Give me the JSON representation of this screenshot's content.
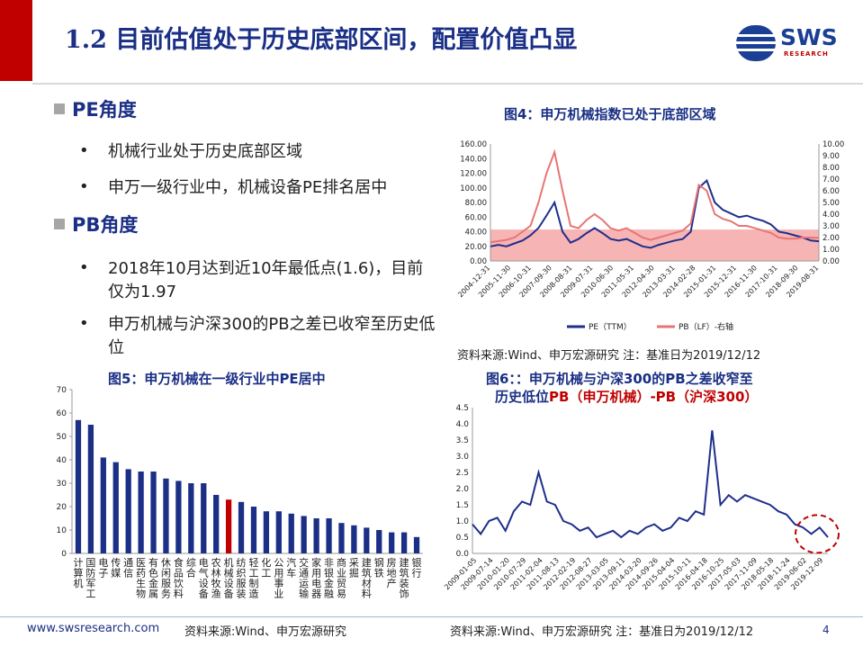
{
  "header": {
    "title": "1.2 目前估值处于历史底部区间，配置价值凸显",
    "logo_text": "SWS",
    "logo_sub": "RESEARCH"
  },
  "sections": [
    {
      "heading": "PE角度",
      "bullets": [
        "机械行业处于历史底部区域",
        "申万一级行业中，机械设备PE排名居中"
      ]
    },
    {
      "heading": "PB角度",
      "bullets": [
        "2018年10月达到近10年最低点(1.6)，目前仅为1.97",
        "申万机械与沪深300的PB之差已收窄至历史低位"
      ]
    }
  ],
  "fig4": {
    "title": "图4：申万机械指数已处于底部区域",
    "source": "资料来源:Wind、申万宏源研究 注：基准日为2019/12/12"
  },
  "fig5": {
    "title": "图5：申万机械在一级行业中PE居中"
  },
  "fig6": {
    "title_line1": "图6：：申万机械与沪深300的PB之差收窄至",
    "title_line2_a": "历史低位",
    "title_line2_b": "PB（申万机械）-PB（沪深300）"
  },
  "footer": {
    "url": "www.swsresearch.com",
    "source_left": "资料来源:Wind、申万宏源研究",
    "source_right": "资料来源:Wind、申万宏源研究 注：基准日为2019/12/12",
    "page": "4"
  },
  "colors": {
    "navy": "#1a2f85",
    "red": "#c00000",
    "pe_line": "#1f2f8c",
    "pb_line": "#e87575",
    "band": "#f7b4b4"
  },
  "chart_data": [
    {
      "id": "fig4",
      "type": "line",
      "x_ticks": [
        "2004-12-31",
        "2005-11-30",
        "2006-10-31",
        "2007-09-30",
        "2008-08-31",
        "2009-07-31",
        "2010-06-30",
        "2011-05-31",
        "2012-04-30",
        "2013-03-31",
        "2014-02-28",
        "2015-01-31",
        "2015-12-31",
        "2016-11-30",
        "2017-10-31",
        "2018-09-30",
        "2019-08-31"
      ],
      "y_ticks_left": [
        "0.00",
        "20.00",
        "40.00",
        "60.00",
        "80.00",
        "100.00",
        "120.00",
        "140.00",
        "160.00"
      ],
      "y_ticks_right": [
        "0.00",
        "1.00",
        "2.00",
        "3.00",
        "4.00",
        "5.00",
        "6.00",
        "7.00",
        "8.00",
        "9.00",
        "10.00"
      ],
      "ylim_left": [
        0,
        160
      ],
      "ylim_right": [
        0,
        10
      ],
      "shaded_band_left": [
        0,
        43
      ],
      "legend": [
        "PE（TTM）",
        "PB（LF）-右轴"
      ],
      "series": [
        {
          "name": "PE（TTM）",
          "axis": "left",
          "values": [
            20,
            22,
            20,
            24,
            28,
            35,
            45,
            62,
            80,
            40,
            25,
            30,
            38,
            45,
            38,
            30,
            28,
            30,
            25,
            20,
            18,
            22,
            25,
            28,
            30,
            40,
            100,
            110,
            80,
            70,
            65,
            60,
            62,
            58,
            55,
            50,
            40,
            38,
            35,
            32,
            28,
            27
          ]
        },
        {
          "name": "PB（LF）-右轴",
          "axis": "right",
          "values": [
            1.6,
            1.7,
            1.8,
            2.0,
            2.5,
            3.0,
            5.0,
            7.5,
            9.3,
            6.0,
            3.0,
            2.8,
            3.5,
            4.0,
            3.5,
            2.8,
            2.6,
            2.8,
            2.4,
            2.0,
            1.8,
            2.0,
            2.2,
            2.4,
            2.6,
            3.2,
            6.5,
            6.0,
            4.0,
            3.6,
            3.4,
            3.0,
            3.0,
            2.8,
            2.6,
            2.4,
            2.0,
            1.9,
            1.9,
            2.0,
            2.0,
            1.97
          ]
        }
      ]
    },
    {
      "id": "fig5",
      "type": "bar",
      "ylim": [
        0,
        70
      ],
      "y_ticks": [
        "0",
        "10",
        "20",
        "30",
        "40",
        "50",
        "60",
        "70"
      ],
      "categories": [
        "计算机",
        "国防军工",
        "电子",
        "传媒",
        "通信",
        "医药生物",
        "有色金属",
        "休闲服务",
        "食品饮料",
        "综合",
        "电气设备",
        "农林牧渔",
        "机械设备",
        "纺织服装",
        "轻工制造",
        "化工",
        "公用事业",
        "汽车",
        "交通运输",
        "家用电器",
        "非银金融",
        "商业贸易",
        "采掘",
        "建筑材料",
        "钢铁",
        "房地产",
        "建筑装饰",
        "银行"
      ],
      "values": [
        57,
        55,
        41,
        39,
        36,
        35,
        35,
        32,
        31,
        30,
        30,
        25,
        23,
        22,
        20,
        18,
        18,
        17,
        16,
        15,
        15,
        13,
        12,
        11,
        10,
        9,
        9,
        7
      ],
      "highlight": "机械设备"
    },
    {
      "id": "fig6",
      "type": "line",
      "ylim": [
        0,
        4.5
      ],
      "y_ticks": [
        "0.0",
        "0.5",
        "1.0",
        "1.5",
        "2.0",
        "2.5",
        "3.0",
        "3.5",
        "4.0",
        "4.5"
      ],
      "x_ticks": [
        "2009-01-05",
        "2009-07-14",
        "2010-01-20",
        "2010-07-29",
        "2011-02-04",
        "2011-08-13",
        "2012-02-19",
        "2012-08-27",
        "2013-03-05",
        "2013-09-11",
        "2014-03-20",
        "2014-09-26",
        "2015-04-04",
        "2015-10-11",
        "2016-04-18",
        "2016-10-25",
        "2017-05-03",
        "2017-11-09",
        "2018-05-18",
        "2018-11-24",
        "2019-06-02",
        "2019-12-09"
      ],
      "series": [
        {
          "name": "",
          "values": [
            0.9,
            0.6,
            1.0,
            1.1,
            0.7,
            1.3,
            1.6,
            1.5,
            2.5,
            1.6,
            1.5,
            1.0,
            0.9,
            0.7,
            0.8,
            0.5,
            0.6,
            0.7,
            0.5,
            0.7,
            0.6,
            0.8,
            0.9,
            0.7,
            0.8,
            1.1,
            1.0,
            1.3,
            1.2,
            3.8,
            1.5,
            1.8,
            1.6,
            1.8,
            1.7,
            1.6,
            1.5,
            1.3,
            1.2,
            0.9,
            0.8,
            0.6,
            0.8,
            0.5
          ]
        }
      ]
    }
  ]
}
